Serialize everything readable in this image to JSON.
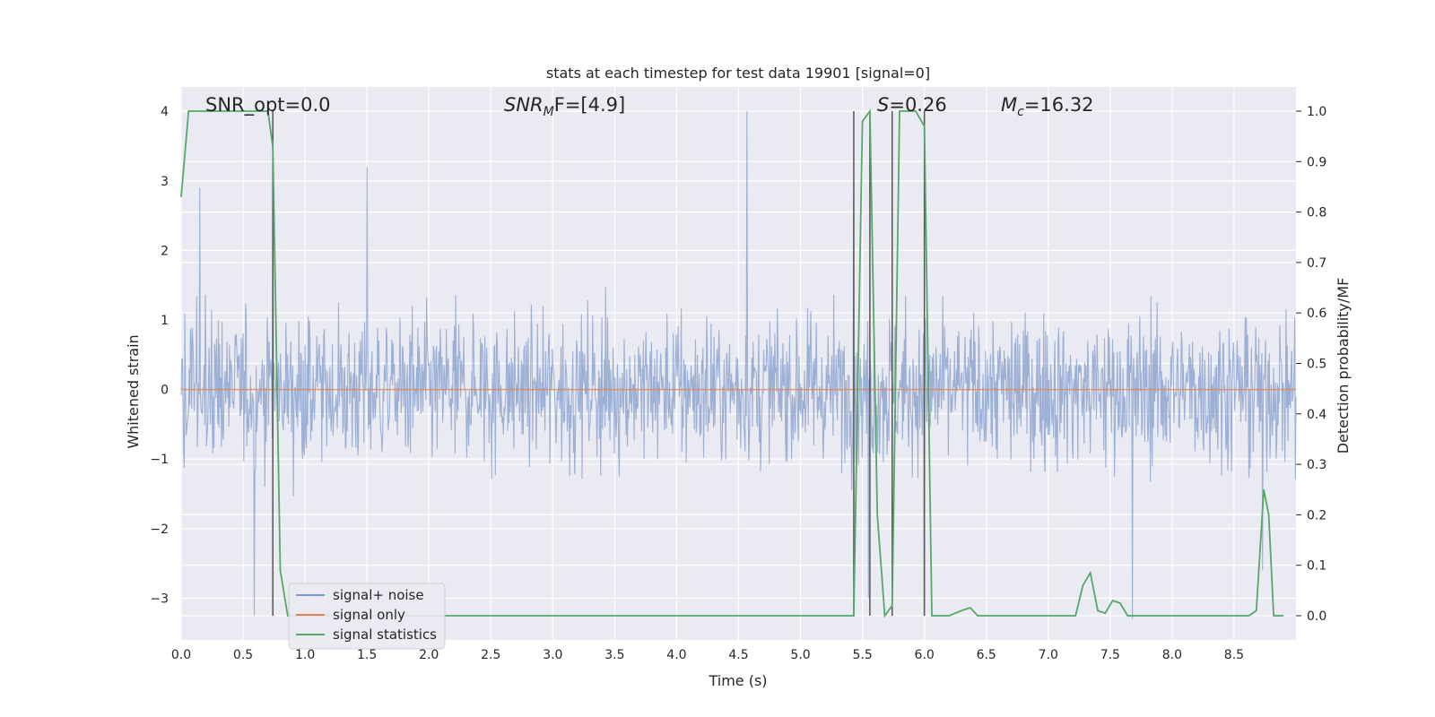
{
  "chart_data": {
    "type": "line",
    "title": "stats at each timestep for test data 19901 [signal=0]",
    "xlabel": "Time (s)",
    "ylabel": "Whitened strain",
    "y2label": "Detection probability/MF",
    "xlim": [
      0,
      9.0
    ],
    "ylim": [
      -3.6,
      4.35
    ],
    "y2lim": [
      -0.048,
      1.048
    ],
    "xticks": [
      "0.0",
      "0.5",
      "1.0",
      "1.5",
      "2.0",
      "2.5",
      "3.0",
      "3.5",
      "4.0",
      "4.5",
      "5.0",
      "5.5",
      "6.0",
      "6.5",
      "7.0",
      "7.5",
      "8.0",
      "8.5"
    ],
    "yticks": [
      "4",
      "3",
      "2",
      "1",
      "0",
      "−1",
      "−2",
      "−3"
    ],
    "y2ticks": [
      "1.0",
      "0.9",
      "0.8",
      "0.7",
      "0.6",
      "0.5",
      "0.4",
      "0.3",
      "0.2",
      "0.1",
      "0.0"
    ],
    "grid": true,
    "legend_position": "lower-left",
    "annotations": {
      "snr_opt": "SNR_opt=0.0",
      "snr_mf_main": "SNR",
      "snr_mf_sub": "M",
      "snr_mf_rest": "F=[4.9]",
      "s_main": "S",
      "s_rest": "=0.26",
      "mc_main": "M",
      "mc_sub": "c",
      "mc_rest": "=16.32"
    },
    "vertical_lines": [
      0.74,
      5.43,
      5.56,
      5.74,
      6.0
    ],
    "series": [
      {
        "name": "signal+ noise",
        "color": "#7b96c8",
        "description_values": "noise amplitude roughly within ±1.1 dense band, peaks up to ~4.0 and down to ~-3.25",
        "peaks": [
          [
            0.74,
            3.45
          ],
          [
            4.57,
            4.0
          ],
          [
            5.43,
            2.8
          ],
          [
            1.5,
            3.2
          ],
          [
            0.15,
            2.9
          ],
          [
            5.55,
            -3.0
          ],
          [
            6.0,
            -3.25
          ],
          [
            0.59,
            -3.25
          ],
          [
            7.68,
            -3.3
          ],
          [
            8.73,
            -2.6
          ]
        ]
      },
      {
        "name": "signal only",
        "color": "#dd8452",
        "values_constant": 0
      },
      {
        "name": "signal statistics",
        "color": "#55a868",
        "axis": "right",
        "points": [
          [
            0.0,
            0.83
          ],
          [
            0.06,
            1.0
          ],
          [
            0.12,
            1.0
          ],
          [
            0.7,
            1.0
          ],
          [
            0.74,
            0.93
          ],
          [
            0.8,
            0.09
          ],
          [
            0.86,
            0.0
          ],
          [
            5.43,
            0.0
          ],
          [
            5.5,
            0.98
          ],
          [
            5.56,
            1.0
          ],
          [
            5.62,
            0.2
          ],
          [
            5.68,
            0.0
          ],
          [
            5.74,
            0.02
          ],
          [
            5.8,
            1.0
          ],
          [
            5.86,
            1.0
          ],
          [
            5.93,
            1.0
          ],
          [
            6.0,
            0.97
          ],
          [
            6.06,
            0.0
          ],
          [
            6.2,
            0.0
          ],
          [
            6.3,
            0.01
          ],
          [
            6.37,
            0.016
          ],
          [
            6.43,
            0.0
          ],
          [
            7.22,
            0.0
          ],
          [
            7.28,
            0.06
          ],
          [
            7.34,
            0.085
          ],
          [
            7.4,
            0.01
          ],
          [
            7.46,
            0.005
          ],
          [
            7.52,
            0.03
          ],
          [
            7.58,
            0.025
          ],
          [
            7.64,
            0.0
          ],
          [
            8.62,
            0.0
          ],
          [
            8.68,
            0.01
          ],
          [
            8.74,
            0.25
          ],
          [
            8.78,
            0.2
          ],
          [
            8.82,
            0.0
          ],
          [
            8.9,
            0.0
          ]
        ]
      }
    ]
  }
}
